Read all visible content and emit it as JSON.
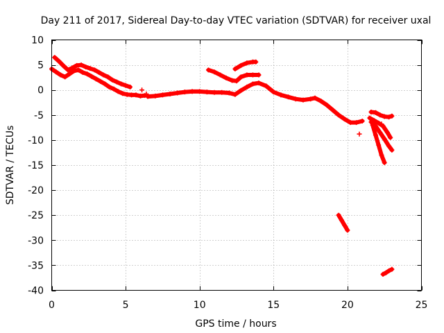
{
  "chart_data": {
    "type": "scatter",
    "title": "Day 211 of 2017, Sidereal Day-to-day VTEC variation (SDTVAR) for receiver uxal",
    "xlabel": "GPS time / hours",
    "ylabel": "SDTVAR / TECUs",
    "xlim": [
      0,
      25
    ],
    "ylim": [
      -40,
      10
    ],
    "xticks": [
      0,
      5,
      10,
      15,
      20,
      25
    ],
    "yticks": [
      10,
      5,
      0,
      -5,
      -10,
      -15,
      -20,
      -25,
      -30,
      -35,
      -40
    ],
    "grid": true,
    "legend": "none",
    "colors": {
      "series": "#ff0000",
      "grid": "#a0a0a0",
      "axes": "#000000"
    },
    "series": [
      {
        "name": "main track 0-6.5h",
        "x": [
          0,
          0.3,
          0.6,
          0.9,
          1.2,
          1.5,
          1.8,
          2.1,
          2.4,
          2.7,
          3.0,
          3.3,
          3.6,
          3.9,
          4.2,
          4.5,
          4.8,
          5.1,
          5.4,
          5.7,
          6.0,
          6.3
        ],
        "y": [
          4.2,
          3.6,
          3.0,
          2.6,
          3.2,
          3.8,
          4.0,
          3.5,
          3.2,
          2.7,
          2.2,
          1.7,
          1.2,
          0.6,
          0.2,
          -0.3,
          -0.7,
          -0.9,
          -1.0,
          -1.0,
          -1.2,
          -1.1
        ]
      },
      {
        "name": "upper branch 0-5.5h",
        "x": [
          0.2,
          0.5,
          0.8,
          1.1,
          1.4,
          1.7,
          2.0,
          2.3,
          2.6,
          2.9,
          3.2,
          3.5,
          3.8,
          4.1,
          4.4,
          4.7,
          5.0,
          5.3
        ],
        "y": [
          6.5,
          5.7,
          4.8,
          4.0,
          4.4,
          4.9,
          5.0,
          4.6,
          4.3,
          4.0,
          3.5,
          3.0,
          2.6,
          2.0,
          1.6,
          1.2,
          0.9,
          0.6
        ]
      },
      {
        "name": "main track 6.5-21h",
        "x": [
          6.5,
          7,
          7.5,
          8,
          8.5,
          9,
          9.5,
          10,
          10.5,
          11,
          11.5,
          12,
          12.4,
          12.8,
          13.2,
          13.6,
          14,
          14.5,
          15,
          15.5,
          16,
          16.5,
          17,
          17.5,
          17.8,
          18.2,
          18.6,
          19,
          19.4,
          19.8,
          20.2,
          20.6,
          21
        ],
        "y": [
          -1.3,
          -1.2,
          -1.0,
          -0.8,
          -0.6,
          -0.4,
          -0.3,
          -0.3,
          -0.4,
          -0.5,
          -0.5,
          -0.6,
          -0.9,
          -0.1,
          0.6,
          1.2,
          1.4,
          0.8,
          -0.4,
          -1.0,
          -1.4,
          -1.8,
          -2.0,
          -1.8,
          -1.6,
          -2.2,
          -3.0,
          -4.0,
          -5.0,
          -5.8,
          -6.5,
          -6.5,
          -6.2
        ]
      },
      {
        "name": "upper branch 10.5-14h",
        "x": [
          10.6,
          11.0,
          11.4,
          11.8,
          12.2,
          12.5,
          12.8,
          13.2,
          13.6,
          14.0
        ],
        "y": [
          4.0,
          3.6,
          3.0,
          2.4,
          1.9,
          1.8,
          2.6,
          3.0,
          3.0,
          3.0
        ]
      },
      {
        "name": "top branch 12.5-13.8h",
        "x": [
          12.4,
          12.8,
          13.2,
          13.6,
          13.8
        ],
        "y": [
          4.2,
          4.9,
          5.4,
          5.6,
          5.6
        ]
      },
      {
        "name": "branch 21.5-23h (a)",
        "x": [
          21.6,
          21.9,
          22.2,
          22.5,
          22.8,
          23.0
        ],
        "y": [
          -4.4,
          -4.5,
          -5.0,
          -5.3,
          -5.4,
          -5.2
        ]
      },
      {
        "name": "branch 21.5-23h (b)",
        "x": [
          21.5,
          21.8,
          22.1,
          22.4,
          22.7,
          22.9
        ],
        "y": [
          -5.6,
          -6.1,
          -6.6,
          -7.2,
          -8.5,
          -9.5
        ]
      },
      {
        "name": "branch 21.5-23h (c)",
        "x": [
          21.6,
          21.9,
          22.2,
          22.5,
          22.8,
          23.0
        ],
        "y": [
          -6.4,
          -7.2,
          -8.5,
          -9.8,
          -11.2,
          -12.0
        ]
      },
      {
        "name": "branch 21.5-23h (d)",
        "x": [
          21.7,
          21.9,
          22.1,
          22.3,
          22.5
        ],
        "y": [
          -7.0,
          -9.0,
          -11.0,
          -13.0,
          -14.5
        ]
      },
      {
        "name": "outlier 19.3-20h",
        "x": [
          19.4,
          19.6,
          19.8,
          20.0
        ],
        "y": [
          -25.0,
          -26.0,
          -27.0,
          -28.0
        ]
      },
      {
        "name": "outlier 22.5-23h",
        "x": [
          22.4,
          22.6,
          22.8,
          23.0
        ],
        "y": [
          -36.8,
          -36.5,
          -36.1,
          -35.8
        ]
      },
      {
        "name": "isolated points",
        "x": [
          6.1,
          6.4,
          20.8,
          22.3
        ],
        "y": [
          0.0,
          -0.8,
          -8.8,
          -6.8
        ]
      }
    ]
  }
}
